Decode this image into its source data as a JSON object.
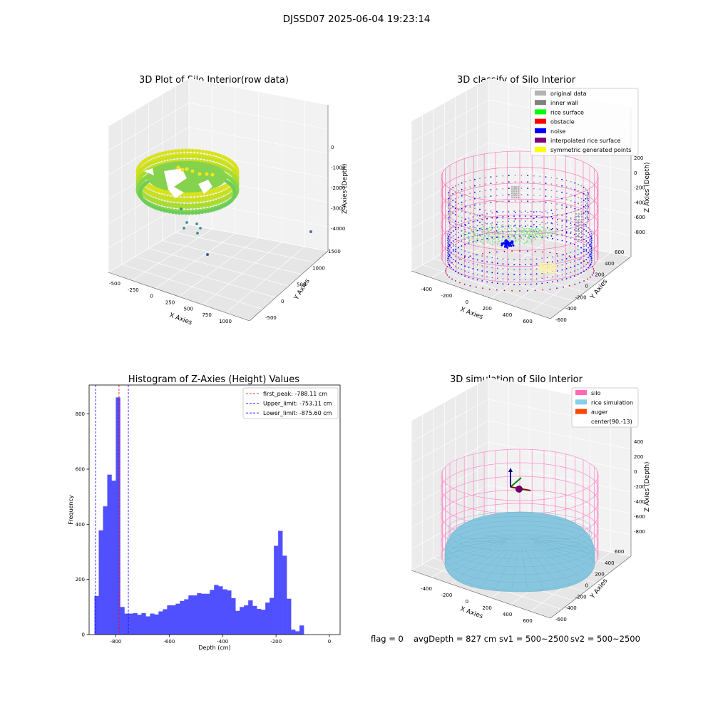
{
  "figure": {
    "suptitle": "DJSSD07 2025-06-04 19:23:14",
    "footer": {
      "flag": "flag = 0",
      "avg_depth": "avgDepth = 827 cm",
      "sv1": "sv1 = 500~2500",
      "sv2": "sv2 = 500~2500"
    }
  },
  "chart_data": [
    {
      "type": "scatter",
      "projection": "3d",
      "title": "3D Plot of Silo Interior(row data)",
      "xlabel": "X Axies",
      "ylabel": "Y Axies",
      "zlabel": "Z Axies (Depth)",
      "x_ticks": [
        "-500",
        "-250",
        "0",
        "250",
        "500",
        "750",
        "1000"
      ],
      "y_ticks": [
        "-500",
        "0",
        "500",
        "1000",
        "1500"
      ],
      "z_ticks": [
        "0",
        "-1000",
        "-2000",
        "-3000",
        "-4000"
      ],
      "colormap": "viridis",
      "colors": {
        "surface_high": "#d8e219",
        "surface_mid": "#7ad151",
        "sparse": "#3b8f8c"
      },
      "note_points": "dense ring of points near z -1000 to -2000, sparse outliers down to about -4200"
    },
    {
      "type": "scatter",
      "projection": "3d",
      "title": "3D classify of Silo Interior",
      "xlabel": "X Axies",
      "ylabel": "Y Axies",
      "zlabel": "Z Axies (Depth)",
      "x_ticks": [
        "-400",
        "-200",
        "0",
        "200",
        "400",
        "600"
      ],
      "y_ticks": [
        "-600",
        "-400",
        "-200",
        "0",
        "200",
        "400",
        "600"
      ],
      "z_ticks": [
        "200",
        "0",
        "-200",
        "-400",
        "-600",
        "-800"
      ],
      "legend_position": "top-right",
      "legend": [
        {
          "label": "original data",
          "color": "#b3b3b3"
        },
        {
          "label": "inner wall",
          "color": "#808080"
        },
        {
          "label": "rice surface",
          "color": "#00ff00"
        },
        {
          "label": "obstacle",
          "color": "#ff0000"
        },
        {
          "label": "noise",
          "color": "#0000ff"
        },
        {
          "label": "interpolated rice surface",
          "color": "#800080"
        },
        {
          "label": "symmetric generated points",
          "color": "#ffff00"
        }
      ],
      "cylinder_color": "#ff69b4"
    },
    {
      "type": "bar",
      "title": "Histogram of Z-Axies (Height) Values",
      "xlabel": "Depth (cm)",
      "ylabel": "Frequency",
      "xlim": [
        -900,
        40
      ],
      "ylim": [
        0,
        905
      ],
      "x_ticks": [
        -800,
        -600,
        -400,
        -200,
        0
      ],
      "y_ticks": [
        0,
        200,
        400,
        600,
        800
      ],
      "bar_color": "#5050ff",
      "bin_start": -880,
      "bin_width": 16,
      "values": [
        140,
        378,
        465,
        580,
        558,
        860,
        100,
        76,
        76,
        78,
        72,
        78,
        66,
        76,
        73,
        84,
        92,
        106,
        106,
        112,
        122,
        128,
        142,
        142,
        150,
        148,
        148,
        162,
        180,
        175,
        164,
        160,
        132,
        86,
        100,
        106,
        124,
        104,
        93,
        90,
        116,
        133,
        322,
        376,
        286,
        130,
        18,
        12,
        33
      ],
      "vlines": [
        {
          "label": "first_peak: -788.11 cm",
          "value": -788.11,
          "color": "#ff0000"
        },
        {
          "label": "Upper_limit: -753.11 cm",
          "value": -753.11,
          "color": "#0000ff"
        },
        {
          "label": "Lower_limit: -875.60 cm",
          "value": -875.6,
          "color": "#0000ff"
        }
      ],
      "legend_position": "top-right"
    },
    {
      "type": "scatter",
      "projection": "3d",
      "title": "3D simulation of Silo Interior",
      "xlabel": "X Axies",
      "ylabel": "Y Axies",
      "zlabel": "Z Axies (Depth)",
      "x_ticks": [
        "-400",
        "-200",
        "0",
        "200",
        "400",
        "600"
      ],
      "y_ticks": [
        "-600",
        "-400",
        "-200",
        "0",
        "200",
        "400",
        "600"
      ],
      "z_ticks": [
        "400",
        "200",
        "0",
        "-200",
        "-400",
        "-600",
        "-800"
      ],
      "legend_position": "top-right",
      "legend": [
        {
          "label": "silo",
          "color": "#ff69b4"
        },
        {
          "label": "rice simulation",
          "color": "#87ceeb"
        },
        {
          "label": "auger",
          "color": "#ff4500"
        },
        {
          "label": "center(90,-13)",
          "color": "#ffffff"
        }
      ],
      "rice_color": "#87c6de",
      "silo_color": "#ff8ccc"
    }
  ]
}
